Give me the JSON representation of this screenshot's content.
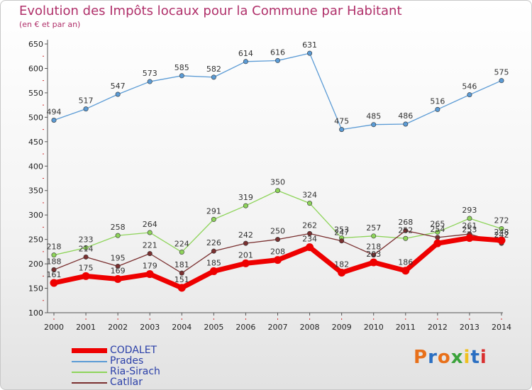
{
  "title": "Evolution des Impôts locaux pour la Commune par Habitant",
  "subtitle": "(en € et par an)",
  "logo": {
    "text": "Proxiti",
    "colors": [
      "#e8701a",
      "#2b6fc2",
      "#e8701a",
      "#3ba33b",
      "#f0c020",
      "#2b6fc2",
      "#d93030"
    ]
  },
  "chart_data": {
    "type": "line",
    "x": [
      2000,
      2001,
      2002,
      2003,
      2004,
      2005,
      2006,
      2007,
      2008,
      2009,
      2010,
      2011,
      2012,
      2013,
      2014
    ],
    "ylim": [
      100,
      650
    ],
    "yticks": [
      100,
      150,
      200,
      250,
      300,
      350,
      400,
      450,
      500,
      550,
      600,
      650
    ],
    "grid": false,
    "legend_position": "bottom-left",
    "series": [
      {
        "name": "CODALET",
        "color": "#ee0000",
        "values": [
          161,
          175,
          169,
          179,
          151,
          185,
          201,
          208,
          234,
          182,
          203,
          186,
          242,
          253,
          248
        ],
        "labels": [
          "161",
          "175",
          "169",
          "179",
          "151",
          "185",
          "201",
          "208",
          "234",
          "182",
          "203",
          "186",
          "",
          "253",
          "248"
        ]
      },
      {
        "name": "Prades",
        "color": "#5b9bd5",
        "values": [
          494,
          517,
          547,
          573,
          585,
          582,
          614,
          616,
          631,
          475,
          485,
          486,
          516,
          546,
          575
        ],
        "labels": [
          "494",
          "517",
          "547",
          "573",
          "585",
          "582",
          "614",
          "616",
          "631",
          "475",
          "485",
          "486",
          "516",
          "546",
          "575"
        ]
      },
      {
        "name": "Ria-Sirach",
        "color": "#8ed45a",
        "values": [
          218,
          233,
          258,
          264,
          224,
          291,
          319,
          350,
          324,
          253,
          257,
          252,
          265,
          293,
          272
        ],
        "labels": [
          "218",
          "233",
          "258",
          "264",
          "224",
          "291",
          "319",
          "350",
          "324",
          "253",
          "257",
          "252",
          "265",
          "293",
          "272"
        ]
      },
      {
        "name": "Catllar",
        "color": "#7a3030",
        "values": [
          188,
          214,
          195,
          221,
          181,
          226,
          242,
          250,
          262,
          247,
          218,
          268,
          254,
          261,
          242
        ],
        "labels": [
          "188",
          "214",
          "195",
          "221",
          "181",
          "226",
          "242",
          "250",
          "262",
          "247",
          "218",
          "268",
          "254",
          "261",
          "242"
        ]
      }
    ]
  }
}
